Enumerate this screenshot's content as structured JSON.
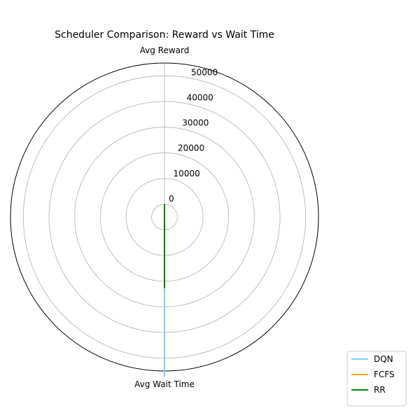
{
  "chart_data": {
    "type": "radar",
    "title": "Scheduler Comparison: Reward vs Wait Time",
    "axes": [
      "Avg Reward",
      "Avg Wait Time"
    ],
    "radial_ticks": [
      "0",
      "10000",
      "20000",
      "30000",
      "40000",
      "50000"
    ],
    "radial_tick_values": [
      0,
      10000,
      20000,
      30000,
      40000,
      50000
    ],
    "rlim": [
      -5000,
      55000
    ],
    "grid": true,
    "legend_placement": "upper-right-outside",
    "series": [
      {
        "name": "DQN",
        "color": "#87ceeb",
        "values": [
          0,
          57000
        ]
      },
      {
        "name": "FCFS",
        "color": "#ffa500",
        "values": [
          0,
          22500
        ]
      },
      {
        "name": "RR",
        "color": "#008000",
        "values": [
          0,
          22500
        ]
      }
    ]
  }
}
